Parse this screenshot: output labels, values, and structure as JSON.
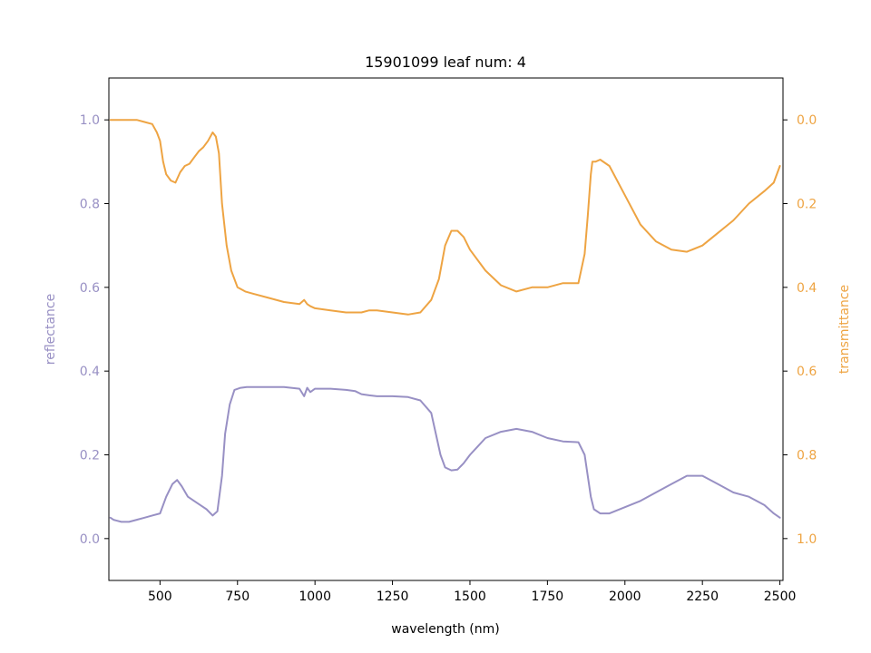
{
  "chart_data": {
    "type": "line",
    "title": "15901099 leaf num: 4",
    "xlabel": "wavelength (nm)",
    "ylabel_left": "reflectance",
    "ylabel_right": "transmittance",
    "xlim": [
      335,
      2510
    ],
    "ylim_left": [
      -0.1,
      1.1
    ],
    "ylim_right": [
      1.1,
      -0.1
    ],
    "right_axis_inverted": true,
    "x_ticks": [
      500,
      750,
      1000,
      1250,
      1500,
      1750,
      2000,
      2250,
      2500
    ],
    "y_ticks_left": [
      0.0,
      0.2,
      0.4,
      0.6,
      0.8,
      1.0
    ],
    "y_ticks_right": [
      0.0,
      0.2,
      0.4,
      0.6,
      0.8,
      1.0
    ],
    "grid": false,
    "legend": "none",
    "colors": {
      "reflectance": "#9890c4",
      "transmittance": "#eea443",
      "axis": "#000000"
    },
    "series": [
      {
        "axis": "left",
        "x": [
          340,
          350,
          375,
          400,
          425,
          450,
          475,
          500,
          520,
          540,
          555,
          570,
          590,
          610,
          630,
          650,
          670,
          685,
          700,
          710,
          725,
          740,
          760,
          780,
          800,
          850,
          900,
          950,
          965,
          975,
          985,
          1000,
          1050,
          1100,
          1130,
          1150,
          1175,
          1200,
          1250,
          1300,
          1340,
          1375,
          1390,
          1405,
          1420,
          1440,
          1460,
          1480,
          1500,
          1525,
          1550,
          1600,
          1650,
          1700,
          1750,
          1800,
          1850,
          1870,
          1880,
          1890,
          1900,
          1920,
          1950,
          2000,
          2050,
          2100,
          2150,
          2200,
          2250,
          2300,
          2350,
          2400,
          2450,
          2480,
          2500
        ],
        "y": [
          0.05,
          0.045,
          0.04,
          0.04,
          0.045,
          0.05,
          0.055,
          0.06,
          0.1,
          0.13,
          0.14,
          0.125,
          0.1,
          0.09,
          0.08,
          0.07,
          0.055,
          0.065,
          0.15,
          0.25,
          0.32,
          0.355,
          0.36,
          0.362,
          0.362,
          0.362,
          0.362,
          0.358,
          0.34,
          0.36,
          0.35,
          0.358,
          0.358,
          0.355,
          0.352,
          0.345,
          0.342,
          0.34,
          0.34,
          0.338,
          0.33,
          0.3,
          0.25,
          0.2,
          0.17,
          0.163,
          0.165,
          0.18,
          0.2,
          0.22,
          0.24,
          0.255,
          0.262,
          0.255,
          0.24,
          0.232,
          0.23,
          0.2,
          0.15,
          0.1,
          0.07,
          0.06,
          0.06,
          0.075,
          0.09,
          0.11,
          0.13,
          0.15,
          0.15,
          0.13,
          0.11,
          0.1,
          0.08,
          0.06,
          0.05
        ]
      },
      {
        "axis": "right",
        "x": [
          340,
          350,
          375,
          400,
          425,
          450,
          475,
          490,
          500,
          510,
          520,
          535,
          550,
          565,
          580,
          595,
          610,
          625,
          640,
          655,
          670,
          680,
          690,
          700,
          715,
          730,
          750,
          775,
          800,
          850,
          900,
          950,
          965,
          975,
          985,
          1000,
          1050,
          1100,
          1150,
          1175,
          1200,
          1250,
          1300,
          1340,
          1375,
          1400,
          1420,
          1440,
          1460,
          1480,
          1500,
          1550,
          1600,
          1650,
          1700,
          1750,
          1800,
          1850,
          1870,
          1880,
          1890,
          1895,
          1905,
          1920,
          1950,
          2000,
          2050,
          2100,
          2150,
          2200,
          2250,
          2300,
          2350,
          2400,
          2450,
          2480,
          2500
        ],
        "y": [
          0.0,
          0.0,
          0.0,
          0.0,
          0.0,
          0.005,
          0.01,
          0.03,
          0.05,
          0.1,
          0.13,
          0.145,
          0.15,
          0.125,
          0.11,
          0.105,
          0.09,
          0.075,
          0.065,
          0.05,
          0.03,
          0.04,
          0.08,
          0.2,
          0.3,
          0.36,
          0.4,
          0.41,
          0.415,
          0.425,
          0.435,
          0.44,
          0.43,
          0.44,
          0.445,
          0.45,
          0.455,
          0.46,
          0.46,
          0.455,
          0.455,
          0.46,
          0.465,
          0.46,
          0.43,
          0.38,
          0.3,
          0.265,
          0.265,
          0.28,
          0.31,
          0.36,
          0.395,
          0.41,
          0.4,
          0.4,
          0.39,
          0.39,
          0.32,
          0.23,
          0.13,
          0.1,
          0.1,
          0.095,
          0.11,
          0.18,
          0.25,
          0.29,
          0.31,
          0.315,
          0.3,
          0.27,
          0.24,
          0.2,
          0.17,
          0.15,
          0.11
        ]
      }
    ]
  }
}
